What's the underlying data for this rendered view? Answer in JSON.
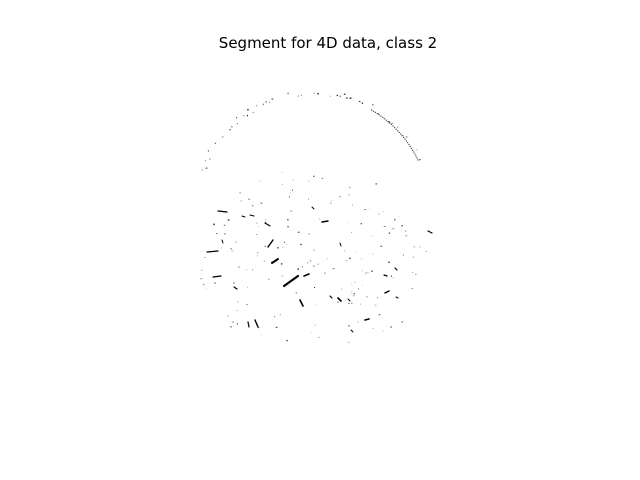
{
  "figure": {
    "title": "Segment for 4D data, class 2"
  },
  "image": {
    "content": "binary segmentation mask",
    "background_color": "#ffffff",
    "foreground_color": "#000000"
  }
}
